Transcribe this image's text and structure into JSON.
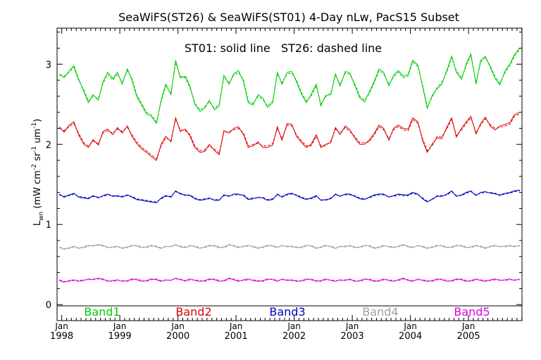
{
  "chart_data": {
    "type": "line",
    "title": "SeaWiFS(ST26) & SeaWiFS(ST01) 4-Day nLw, PacS15 Subset",
    "annotation": "ST01: solid line   ST26: dashed line",
    "ylabel": {
      "main": "L",
      "sub": "wn",
      "units_open": "(mW cm",
      "units_sup1": "-2",
      "units_mid1": " sr",
      "units_sup2": "-1",
      "units_mid2": " um",
      "units_sup3": "-1",
      "units_close": ")"
    },
    "ylim": [
      -0.2,
      3.45
    ],
    "yticks": [
      "0",
      "1",
      "2",
      "3"
    ],
    "xlim": [
      1997.92,
      2005.92
    ],
    "xtick_month": "Jan",
    "xtick_years": [
      "1998",
      "1999",
      "2000",
      "2001",
      "2002",
      "2003",
      "2004",
      "2005"
    ],
    "legend": [
      {
        "label": "Band1",
        "color": "#00cc00"
      },
      {
        "label": "Band2",
        "color": "#dd0000"
      },
      {
        "label": "Band3",
        "color": "#0000cc"
      },
      {
        "label": "Band4",
        "color": "#a0a0a0"
      },
      {
        "label": "Band5",
        "color": "#dd00dd"
      }
    ],
    "x": [
      1997.96,
      1998.04,
      1998.13,
      1998.21,
      1998.29,
      1998.38,
      1998.46,
      1998.54,
      1998.63,
      1998.71,
      1998.79,
      1998.88,
      1998.96,
      1999.04,
      1999.13,
      1999.21,
      1999.29,
      1999.38,
      1999.46,
      1999.54,
      1999.63,
      1999.71,
      1999.79,
      1999.88,
      1999.96,
      2000.04,
      2000.13,
      2000.21,
      2000.29,
      2000.38,
      2000.46,
      2000.54,
      2000.63,
      2000.71,
      2000.79,
      2000.88,
      2000.96,
      2001.04,
      2001.13,
      2001.21,
      2001.29,
      2001.38,
      2001.46,
      2001.54,
      2001.63,
      2001.71,
      2001.79,
      2001.88,
      2001.96,
      2002.04,
      2002.13,
      2002.21,
      2002.29,
      2002.38,
      2002.46,
      2002.54,
      2002.63,
      2002.71,
      2002.79,
      2002.88,
      2002.96,
      2003.04,
      2003.13,
      2003.21,
      2003.29,
      2003.38,
      2003.46,
      2003.54,
      2003.63,
      2003.71,
      2003.79,
      2003.88,
      2003.96,
      2004.04,
      2004.13,
      2004.21,
      2004.29,
      2004.38,
      2004.46,
      2004.54,
      2004.63,
      2004.71,
      2004.79,
      2004.88,
      2004.96,
      2005.04,
      2005.13,
      2005.21,
      2005.29,
      2005.38,
      2005.46,
      2005.54,
      2005.63,
      2005.71,
      2005.79,
      2005.88
    ],
    "series": [
      {
        "band": "Band1",
        "style": "solid",
        "values": [
          2.88,
          2.83,
          2.92,
          2.98,
          2.82,
          2.66,
          2.52,
          2.62,
          2.55,
          2.78,
          2.9,
          2.82,
          2.9,
          2.75,
          2.94,
          2.8,
          2.6,
          2.48,
          2.38,
          2.35,
          2.26,
          2.55,
          2.75,
          2.62,
          3.05,
          2.83,
          2.85,
          2.72,
          2.5,
          2.41,
          2.45,
          2.55,
          2.43,
          2.48,
          2.86,
          2.75,
          2.88,
          2.92,
          2.78,
          2.52,
          2.49,
          2.62,
          2.58,
          2.46,
          2.52,
          2.9,
          2.75,
          2.9,
          2.91,
          2.78,
          2.62,
          2.52,
          2.62,
          2.75,
          2.48,
          2.61,
          2.62,
          2.88,
          2.73,
          2.91,
          2.89,
          2.74,
          2.58,
          2.53,
          2.65,
          2.79,
          2.94,
          2.9,
          2.73,
          2.86,
          2.92,
          2.85,
          2.87,
          3.05,
          2.99,
          2.72,
          2.45,
          2.62,
          2.69,
          2.75,
          2.93,
          3.1,
          2.9,
          2.81,
          3.0,
          3.13,
          2.75,
          3.05,
          3.1,
          2.95,
          2.82,
          2.74,
          2.92,
          3.0,
          3.12,
          3.2
        ]
      },
      {
        "band": "Band1",
        "style": "dashed",
        "values": [
          2.86,
          2.85,
          2.9,
          2.96,
          2.8,
          2.68,
          2.54,
          2.6,
          2.57,
          2.76,
          2.87,
          2.8,
          2.88,
          2.77,
          2.92,
          2.82,
          2.62,
          2.5,
          2.4,
          2.37,
          2.28,
          2.53,
          2.73,
          2.64,
          3.02,
          2.85,
          2.83,
          2.7,
          2.52,
          2.43,
          2.47,
          2.53,
          2.45,
          2.5,
          2.84,
          2.77,
          2.86,
          2.9,
          2.8,
          2.54,
          2.51,
          2.6,
          2.56,
          2.48,
          2.54,
          2.88,
          2.77,
          2.88,
          2.89,
          2.8,
          2.64,
          2.54,
          2.6,
          2.73,
          2.5,
          2.59,
          2.64,
          2.86,
          2.75,
          2.89,
          2.87,
          2.76,
          2.6,
          2.55,
          2.63,
          2.77,
          2.92,
          2.88,
          2.75,
          2.84,
          2.9,
          2.83,
          2.85,
          3.03,
          2.97,
          2.74,
          2.47,
          2.6,
          2.71,
          2.77,
          2.91,
          3.08,
          2.92,
          2.83,
          2.98,
          3.11,
          2.77,
          3.03,
          3.08,
          2.97,
          2.84,
          2.76,
          2.9,
          2.98,
          3.1,
          3.18
        ]
      },
      {
        "band": "Band2",
        "style": "solid",
        "values": [
          2.22,
          2.15,
          2.24,
          2.28,
          2.12,
          2.0,
          1.96,
          2.06,
          1.99,
          2.16,
          2.19,
          2.12,
          2.21,
          2.14,
          2.23,
          2.1,
          2.01,
          1.94,
          1.9,
          1.85,
          1.8,
          2.0,
          2.1,
          2.03,
          2.33,
          2.16,
          2.19,
          2.1,
          1.96,
          1.9,
          1.91,
          2.0,
          1.92,
          1.87,
          2.17,
          2.14,
          2.2,
          2.22,
          2.12,
          1.96,
          1.98,
          2.03,
          1.96,
          1.96,
          1.99,
          2.22,
          2.05,
          2.26,
          2.25,
          2.1,
          2.02,
          1.96,
          2.0,
          2.12,
          1.96,
          2.0,
          2.02,
          2.21,
          2.12,
          2.23,
          2.18,
          2.08,
          2.0,
          2.0,
          2.05,
          2.14,
          2.24,
          2.2,
          2.05,
          2.2,
          2.24,
          2.2,
          2.19,
          2.33,
          2.28,
          2.05,
          1.9,
          2.01,
          2.08,
          2.07,
          2.22,
          2.33,
          2.09,
          2.2,
          2.28,
          2.35,
          2.13,
          2.26,
          2.34,
          2.22,
          2.18,
          2.23,
          2.25,
          2.27,
          2.37,
          2.4
        ]
      },
      {
        "band": "Band2",
        "style": "dashed",
        "values": [
          2.2,
          2.17,
          2.22,
          2.26,
          2.14,
          2.02,
          1.98,
          2.04,
          2.01,
          2.14,
          2.17,
          2.14,
          2.19,
          2.16,
          2.21,
          2.12,
          2.03,
          1.96,
          1.92,
          1.87,
          1.82,
          1.98,
          2.08,
          2.05,
          2.31,
          2.18,
          2.17,
          2.12,
          1.98,
          1.92,
          1.93,
          1.98,
          1.94,
          1.89,
          2.15,
          2.16,
          2.18,
          2.2,
          2.14,
          1.98,
          2.0,
          2.01,
          1.98,
          1.98,
          2.01,
          2.2,
          2.07,
          2.24,
          2.23,
          2.12,
          2.04,
          1.98,
          1.98,
          2.1,
          1.98,
          1.98,
          2.04,
          2.19,
          2.14,
          2.21,
          2.16,
          2.1,
          2.02,
          2.02,
          2.03,
          2.12,
          2.22,
          2.18,
          2.07,
          2.18,
          2.22,
          2.18,
          2.17,
          2.31,
          2.26,
          2.07,
          1.92,
          1.99,
          2.1,
          2.09,
          2.2,
          2.31,
          2.11,
          2.18,
          2.26,
          2.33,
          2.15,
          2.24,
          2.32,
          2.24,
          2.2,
          2.21,
          2.23,
          2.25,
          2.35,
          2.38
        ]
      },
      {
        "band": "Band3",
        "style": "solid",
        "values": [
          1.38,
          1.34,
          1.37,
          1.39,
          1.34,
          1.33,
          1.32,
          1.36,
          1.33,
          1.36,
          1.38,
          1.35,
          1.36,
          1.34,
          1.37,
          1.34,
          1.31,
          1.3,
          1.29,
          1.28,
          1.27,
          1.33,
          1.36,
          1.34,
          1.42,
          1.38,
          1.37,
          1.36,
          1.32,
          1.3,
          1.31,
          1.33,
          1.3,
          1.3,
          1.37,
          1.35,
          1.38,
          1.38,
          1.36,
          1.31,
          1.32,
          1.34,
          1.33,
          1.3,
          1.31,
          1.38,
          1.34,
          1.38,
          1.39,
          1.36,
          1.33,
          1.31,
          1.33,
          1.36,
          1.3,
          1.31,
          1.32,
          1.38,
          1.35,
          1.38,
          1.38,
          1.35,
          1.32,
          1.31,
          1.34,
          1.37,
          1.38,
          1.38,
          1.34,
          1.36,
          1.38,
          1.37,
          1.37,
          1.4,
          1.38,
          1.32,
          1.28,
          1.32,
          1.35,
          1.35,
          1.38,
          1.42,
          1.35,
          1.37,
          1.4,
          1.42,
          1.36,
          1.4,
          1.41,
          1.39,
          1.38,
          1.37,
          1.39,
          1.4,
          1.42,
          1.43
        ]
      },
      {
        "band": "Band3",
        "style": "dashed",
        "values": [
          1.37,
          1.35,
          1.36,
          1.38,
          1.35,
          1.34,
          1.33,
          1.35,
          1.34,
          1.35,
          1.37,
          1.36,
          1.35,
          1.35,
          1.36,
          1.35,
          1.32,
          1.31,
          1.3,
          1.29,
          1.28,
          1.32,
          1.35,
          1.35,
          1.41,
          1.39,
          1.36,
          1.37,
          1.33,
          1.31,
          1.32,
          1.32,
          1.31,
          1.31,
          1.36,
          1.36,
          1.37,
          1.37,
          1.37,
          1.32,
          1.33,
          1.33,
          1.34,
          1.31,
          1.32,
          1.37,
          1.35,
          1.37,
          1.38,
          1.37,
          1.34,
          1.32,
          1.32,
          1.35,
          1.31,
          1.3,
          1.33,
          1.37,
          1.36,
          1.37,
          1.37,
          1.36,
          1.33,
          1.32,
          1.33,
          1.36,
          1.37,
          1.37,
          1.35,
          1.35,
          1.37,
          1.36,
          1.36,
          1.39,
          1.37,
          1.33,
          1.29,
          1.31,
          1.36,
          1.36,
          1.37,
          1.41,
          1.36,
          1.36,
          1.39,
          1.41,
          1.37,
          1.39,
          1.4,
          1.4,
          1.39,
          1.36,
          1.38,
          1.39,
          1.41,
          1.42
        ]
      },
      {
        "band": "Band4",
        "style": "solid",
        "values": [
          0.72,
          0.69,
          0.71,
          0.73,
          0.7,
          0.72,
          0.74,
          0.73,
          0.75,
          0.74,
          0.71,
          0.72,
          0.73,
          0.7,
          0.72,
          0.74,
          0.73,
          0.71,
          0.72,
          0.74,
          0.72,
          0.7,
          0.73,
          0.72,
          0.75,
          0.72,
          0.71,
          0.74,
          0.72,
          0.7,
          0.72,
          0.74,
          0.73,
          0.71,
          0.72,
          0.75,
          0.73,
          0.71,
          0.73,
          0.74,
          0.72,
          0.7,
          0.72,
          0.74,
          0.73,
          0.71,
          0.74,
          0.72,
          0.73,
          0.71,
          0.72,
          0.74,
          0.73,
          0.7,
          0.72,
          0.74,
          0.72,
          0.7,
          0.73,
          0.72,
          0.74,
          0.71,
          0.72,
          0.74,
          0.73,
          0.7,
          0.72,
          0.74,
          0.72,
          0.71,
          0.73,
          0.75,
          0.72,
          0.71,
          0.74,
          0.72,
          0.7,
          0.72,
          0.74,
          0.73,
          0.71,
          0.72,
          0.74,
          0.73,
          0.71,
          0.72,
          0.74,
          0.72,
          0.7,
          0.73,
          0.74,
          0.72,
          0.73,
          0.74,
          0.72,
          0.74
        ]
      },
      {
        "band": "Band4",
        "style": "dashed",
        "values": [
          0.71,
          0.7,
          0.7,
          0.72,
          0.71,
          0.71,
          0.73,
          0.74,
          0.74,
          0.73,
          0.72,
          0.71,
          0.72,
          0.71,
          0.71,
          0.73,
          0.74,
          0.72,
          0.71,
          0.73,
          0.73,
          0.71,
          0.72,
          0.73,
          0.74,
          0.73,
          0.72,
          0.73,
          0.73,
          0.71,
          0.71,
          0.73,
          0.74,
          0.72,
          0.71,
          0.74,
          0.74,
          0.72,
          0.72,
          0.73,
          0.73,
          0.71,
          0.71,
          0.73,
          0.74,
          0.72,
          0.73,
          0.73,
          0.72,
          0.72,
          0.71,
          0.73,
          0.74,
          0.71,
          0.71,
          0.73,
          0.73,
          0.71,
          0.72,
          0.73,
          0.73,
          0.72,
          0.71,
          0.73,
          0.74,
          0.71,
          0.71,
          0.73,
          0.73,
          0.72,
          0.72,
          0.74,
          0.73,
          0.72,
          0.73,
          0.73,
          0.71,
          0.71,
          0.73,
          0.74,
          0.72,
          0.71,
          0.73,
          0.74,
          0.72,
          0.71,
          0.73,
          0.73,
          0.71,
          0.72,
          0.73,
          0.73,
          0.72,
          0.73,
          0.73,
          0.73
        ]
      },
      {
        "band": "Band5",
        "style": "solid",
        "values": [
          0.3,
          0.28,
          0.3,
          0.31,
          0.29,
          0.3,
          0.32,
          0.31,
          0.33,
          0.32,
          0.29,
          0.3,
          0.31,
          0.29,
          0.3,
          0.32,
          0.31,
          0.29,
          0.3,
          0.32,
          0.31,
          0.29,
          0.31,
          0.3,
          0.33,
          0.31,
          0.3,
          0.32,
          0.3,
          0.29,
          0.3,
          0.32,
          0.31,
          0.29,
          0.3,
          0.33,
          0.31,
          0.29,
          0.31,
          0.32,
          0.3,
          0.29,
          0.3,
          0.32,
          0.31,
          0.29,
          0.32,
          0.3,
          0.31,
          0.29,
          0.3,
          0.32,
          0.31,
          0.29,
          0.3,
          0.32,
          0.3,
          0.29,
          0.31,
          0.3,
          0.32,
          0.29,
          0.3,
          0.32,
          0.31,
          0.29,
          0.3,
          0.32,
          0.3,
          0.29,
          0.31,
          0.33,
          0.3,
          0.29,
          0.32,
          0.3,
          0.29,
          0.3,
          0.32,
          0.31,
          0.29,
          0.3,
          0.32,
          0.31,
          0.29,
          0.3,
          0.32,
          0.3,
          0.29,
          0.31,
          0.32,
          0.3,
          0.31,
          0.32,
          0.3,
          0.32
        ]
      },
      {
        "band": "Band5",
        "style": "dashed",
        "values": [
          0.31,
          0.29,
          0.29,
          0.3,
          0.3,
          0.31,
          0.31,
          0.32,
          0.32,
          0.31,
          0.3,
          0.29,
          0.3,
          0.3,
          0.29,
          0.31,
          0.32,
          0.3,
          0.29,
          0.31,
          0.32,
          0.3,
          0.3,
          0.31,
          0.32,
          0.32,
          0.29,
          0.31,
          0.31,
          0.3,
          0.29,
          0.31,
          0.32,
          0.3,
          0.29,
          0.32,
          0.32,
          0.3,
          0.3,
          0.31,
          0.31,
          0.3,
          0.29,
          0.31,
          0.32,
          0.3,
          0.31,
          0.31,
          0.3,
          0.3,
          0.29,
          0.31,
          0.32,
          0.3,
          0.29,
          0.31,
          0.31,
          0.3,
          0.3,
          0.31,
          0.31,
          0.3,
          0.29,
          0.31,
          0.32,
          0.3,
          0.29,
          0.31,
          0.31,
          0.3,
          0.3,
          0.32,
          0.31,
          0.3,
          0.31,
          0.31,
          0.3,
          0.29,
          0.31,
          0.32,
          0.3,
          0.29,
          0.31,
          0.32,
          0.3,
          0.29,
          0.31,
          0.31,
          0.3,
          0.3,
          0.31,
          0.31,
          0.3,
          0.31,
          0.31,
          0.31
        ]
      }
    ]
  }
}
